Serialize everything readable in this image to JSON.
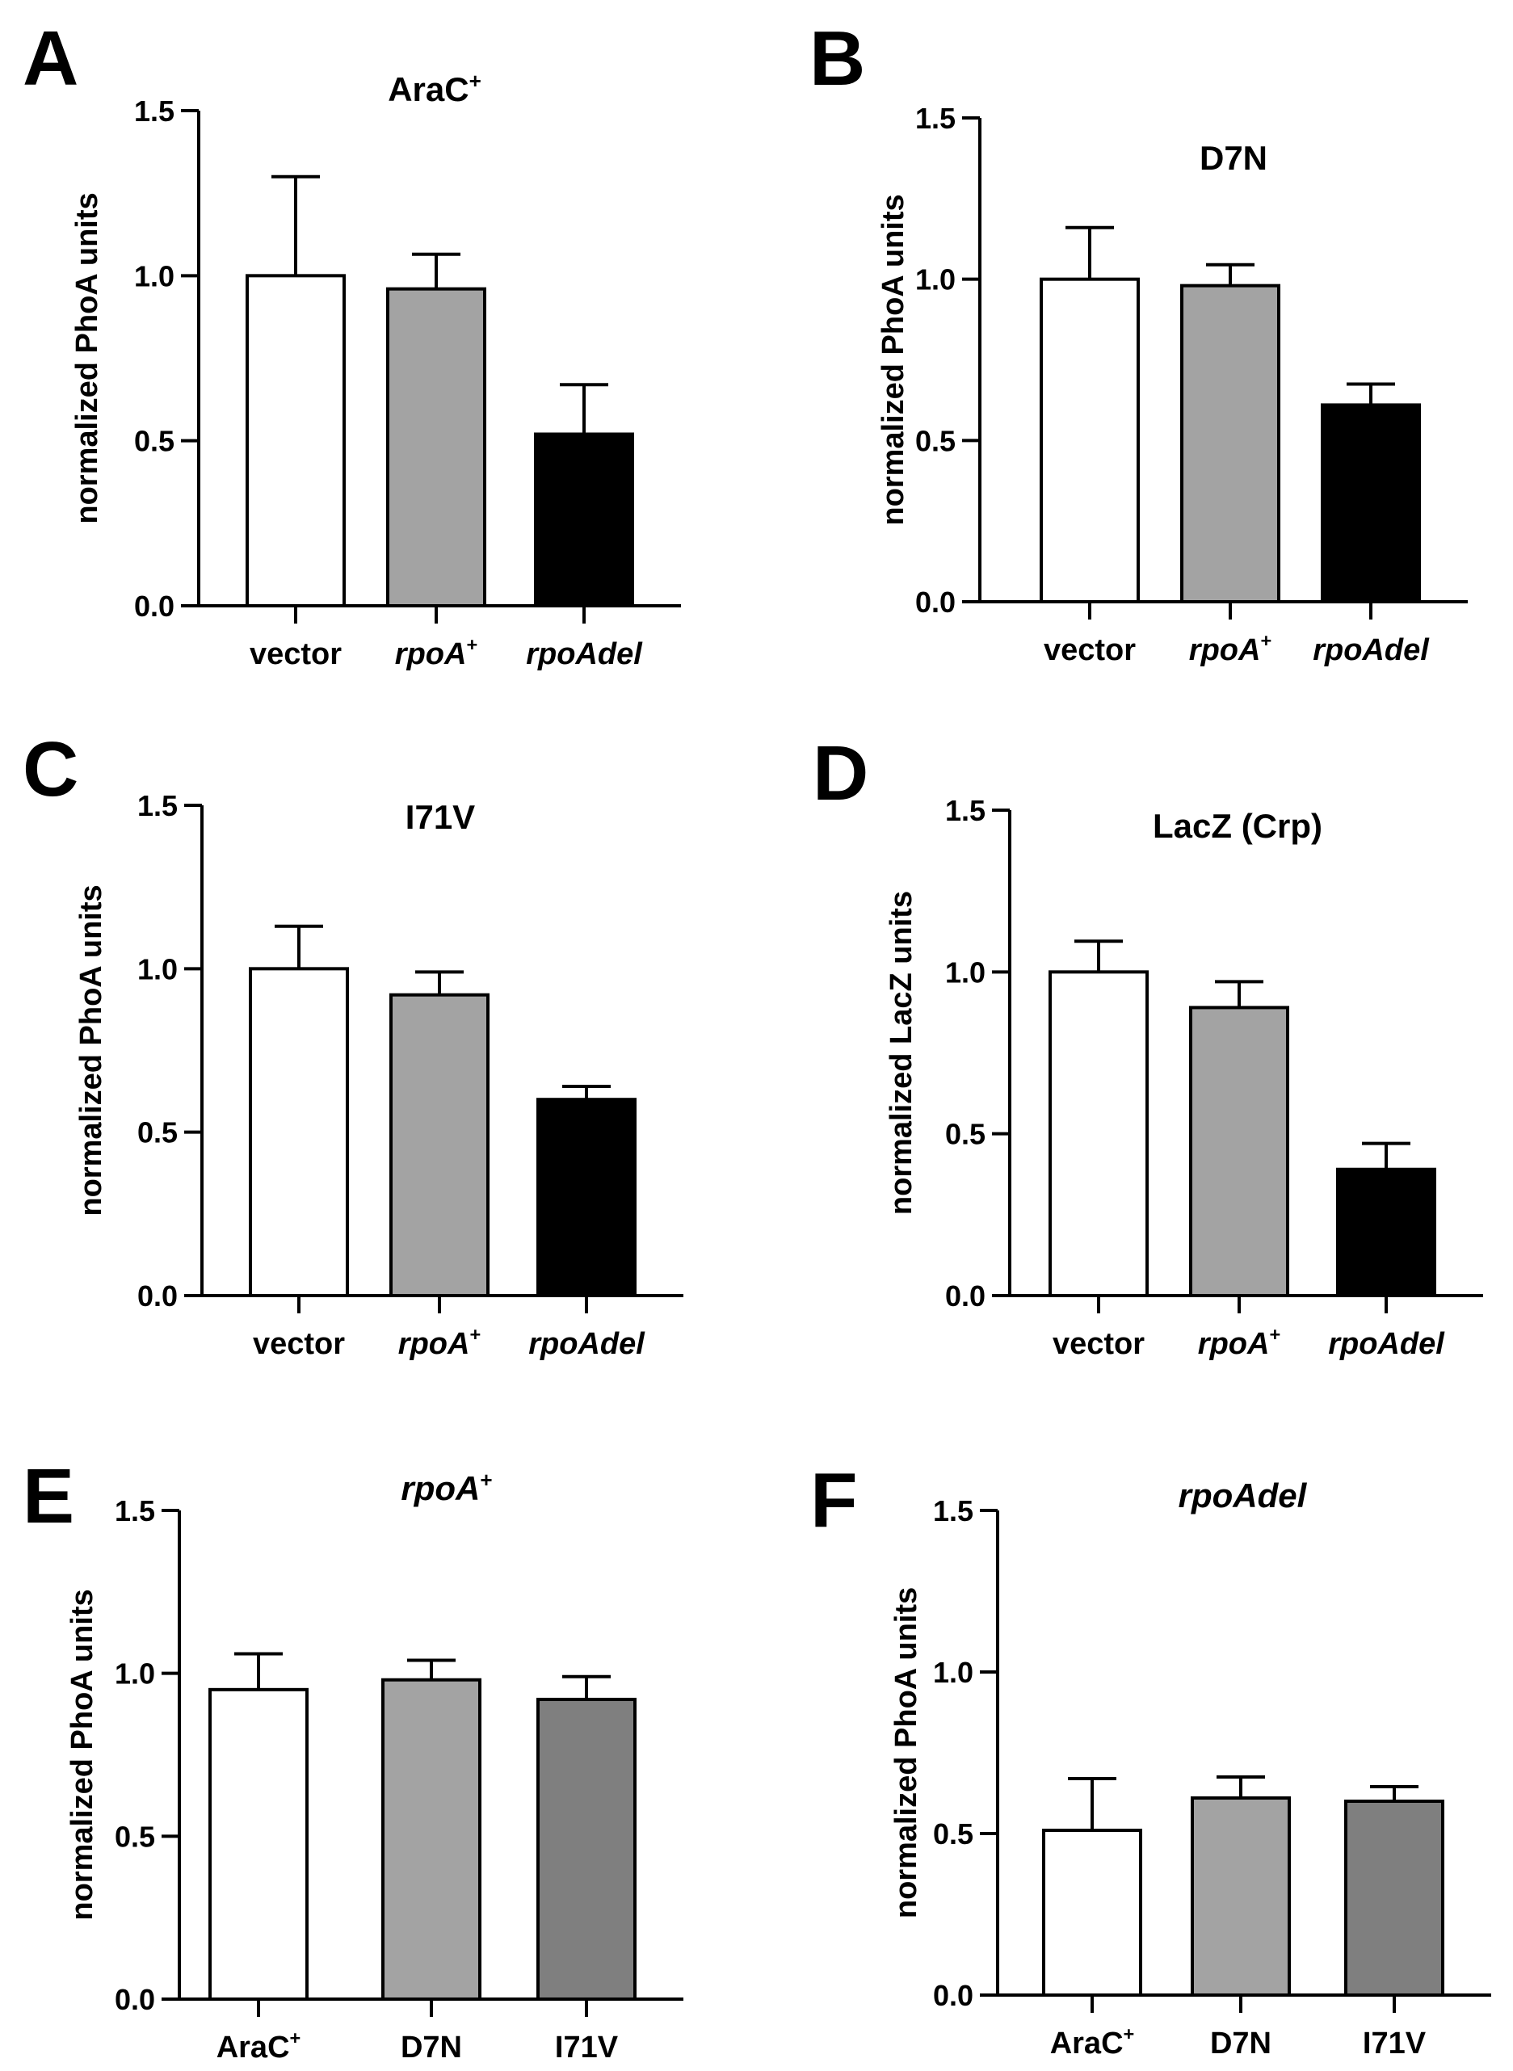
{
  "figure_colors": {
    "vector": "#ffffff",
    "rpoA_plus": "#a3a3a3",
    "rpoAdel": "#000000",
    "I71V_dark": "#7f7f7f",
    "stroke": "#000000"
  },
  "chart_data": [
    {
      "panel": "A",
      "type": "bar",
      "title": "AraC",
      "title_sup": "+",
      "title_italic": false,
      "ylabel": "normalized PhoA units",
      "ylim": [
        0,
        1.5
      ],
      "yticks": [
        "0.0",
        "0.5",
        "1.0",
        "1.5"
      ],
      "categories": [
        {
          "text": "vector",
          "sup": "",
          "italic": false
        },
        {
          "text": "rpoA",
          "sup": "+",
          "italic": true
        },
        {
          "text": "rpoAdel",
          "sup": "",
          "italic": true
        }
      ],
      "values": [
        1.0,
        0.96,
        0.52
      ],
      "errors": [
        0.3,
        0.105,
        0.15
      ],
      "colors": [
        "#ffffff",
        "#a3a3a3",
        "#000000"
      ]
    },
    {
      "panel": "B",
      "type": "bar",
      "title": "D7N",
      "title_sup": "",
      "title_italic": false,
      "ylabel": "normalized PhoA units",
      "ylim": [
        0,
        1.5
      ],
      "yticks": [
        "0.0",
        "0.5",
        "1.0",
        "1.5"
      ],
      "categories": [
        {
          "text": "vector",
          "sup": "",
          "italic": false
        },
        {
          "text": "rpoA",
          "sup": "+",
          "italic": true
        },
        {
          "text": "rpoAdel",
          "sup": "",
          "italic": true
        }
      ],
      "values": [
        1.0,
        0.98,
        0.61
      ],
      "errors": [
        0.16,
        0.065,
        0.065
      ],
      "colors": [
        "#ffffff",
        "#a3a3a3",
        "#000000"
      ]
    },
    {
      "panel": "C",
      "type": "bar",
      "title": "I71V",
      "title_sup": "",
      "title_italic": false,
      "ylabel": "normalized PhoA units",
      "ylim": [
        0,
        1.5
      ],
      "yticks": [
        "0.0",
        "0.5",
        "1.0",
        "1.5"
      ],
      "categories": [
        {
          "text": "vector",
          "sup": "",
          "italic": false
        },
        {
          "text": "rpoA",
          "sup": "+",
          "italic": true
        },
        {
          "text": "rpoAdel",
          "sup": "",
          "italic": true
        }
      ],
      "values": [
        1.0,
        0.92,
        0.6
      ],
      "errors": [
        0.13,
        0.07,
        0.04
      ],
      "colors": [
        "#ffffff",
        "#a3a3a3",
        "#000000"
      ]
    },
    {
      "panel": "D",
      "type": "bar",
      "title": "LacZ (Crp)",
      "title_sup": "",
      "title_italic": false,
      "ylabel": "normalized LacZ units",
      "ylim": [
        0,
        1.5
      ],
      "yticks": [
        "0.0",
        "0.5",
        "1.0",
        "1.5"
      ],
      "categories": [
        {
          "text": "vector",
          "sup": "",
          "italic": false
        },
        {
          "text": "rpoA",
          "sup": "+",
          "italic": true
        },
        {
          "text": "rpoAdel",
          "sup": "",
          "italic": true
        }
      ],
      "values": [
        1.0,
        0.89,
        0.39
      ],
      "errors": [
        0.095,
        0.08,
        0.08
      ],
      "colors": [
        "#ffffff",
        "#a3a3a3",
        "#000000"
      ]
    },
    {
      "panel": "E",
      "type": "bar",
      "title": "rpoA",
      "title_sup": "+",
      "title_italic": true,
      "ylabel": "normalized PhoA units",
      "ylim": [
        0,
        1.5
      ],
      "yticks": [
        "0.0",
        "0.5",
        "1.0",
        "1.5"
      ],
      "categories": [
        {
          "text": "AraC",
          "sup": "+",
          "italic": false
        },
        {
          "text": "D7N",
          "sup": "",
          "italic": false
        },
        {
          "text": "I71V",
          "sup": "",
          "italic": false
        }
      ],
      "values": [
        0.95,
        0.98,
        0.92
      ],
      "errors": [
        0.11,
        0.06,
        0.07
      ],
      "colors": [
        "#ffffff",
        "#a3a3a3",
        "#7f7f7f"
      ]
    },
    {
      "panel": "F",
      "type": "bar",
      "title": "rpoAdel",
      "title_sup": "",
      "title_italic": true,
      "ylabel": "normalized PhoA units",
      "ylim": [
        0,
        1.5
      ],
      "yticks": [
        "0.0",
        "0.5",
        "1.0",
        "1.5"
      ],
      "categories": [
        {
          "text": "AraC",
          "sup": "+",
          "italic": false
        },
        {
          "text": "D7N",
          "sup": "",
          "italic": false
        },
        {
          "text": "I71V",
          "sup": "",
          "italic": false
        }
      ],
      "values": [
        0.51,
        0.61,
        0.6
      ],
      "errors": [
        0.16,
        0.065,
        0.045
      ],
      "colors": [
        "#ffffff",
        "#a3a3a3",
        "#7f7f7f"
      ]
    }
  ]
}
